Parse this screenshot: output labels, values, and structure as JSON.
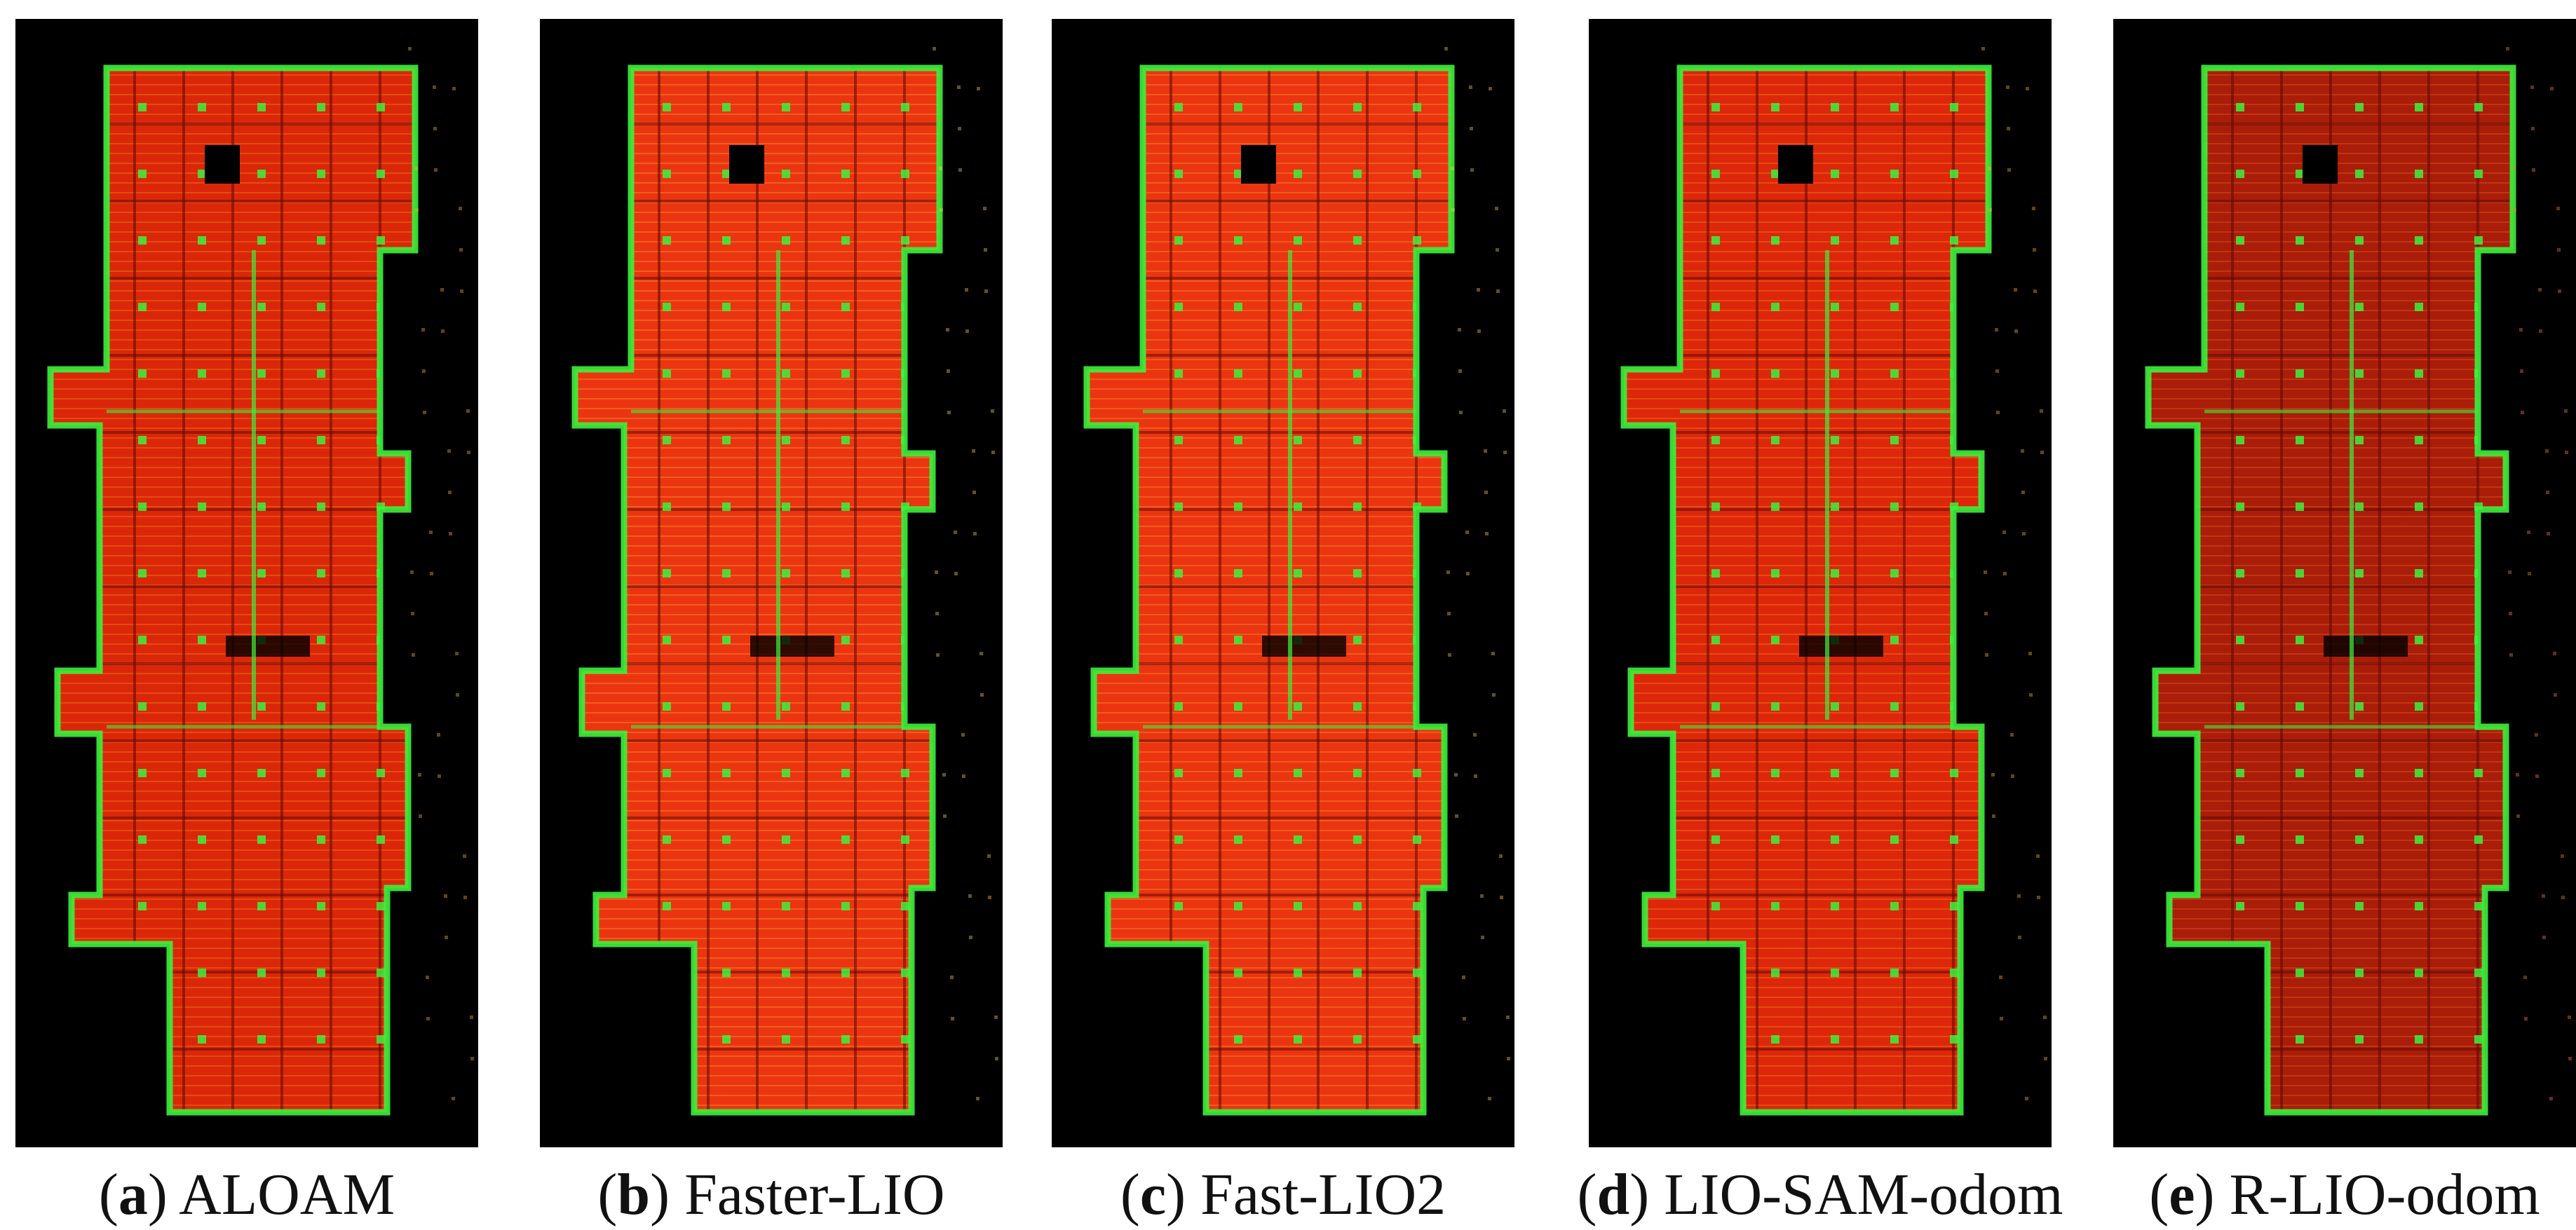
{
  "panels": [
    {
      "id": "a",
      "letter": "a",
      "method": "ALOAM",
      "fill": "#ee2a0a",
      "edge": "#3cf23c",
      "detail": "#ffb020"
    },
    {
      "id": "b",
      "letter": "b",
      "method": "Faster-LIO",
      "fill": "#ff3a12",
      "edge": "#3cf23c",
      "detail": "#ffd040"
    },
    {
      "id": "c",
      "letter": "c",
      "method": "Fast-LIO2",
      "fill": "#ff3a12",
      "edge": "#3cf23c",
      "detail": "#ffc838"
    },
    {
      "id": "d",
      "letter": "d",
      "method": "LIO-SAM-odom",
      "fill": "#f02a0c",
      "edge": "#3cf23c",
      "detail": "#ffb020"
    },
    {
      "id": "e",
      "letter": "e",
      "method": "R-LIO-odom",
      "fill": "#b8200a",
      "edge": "#3cf23c",
      "detail": "#ff7a30"
    }
  ]
}
